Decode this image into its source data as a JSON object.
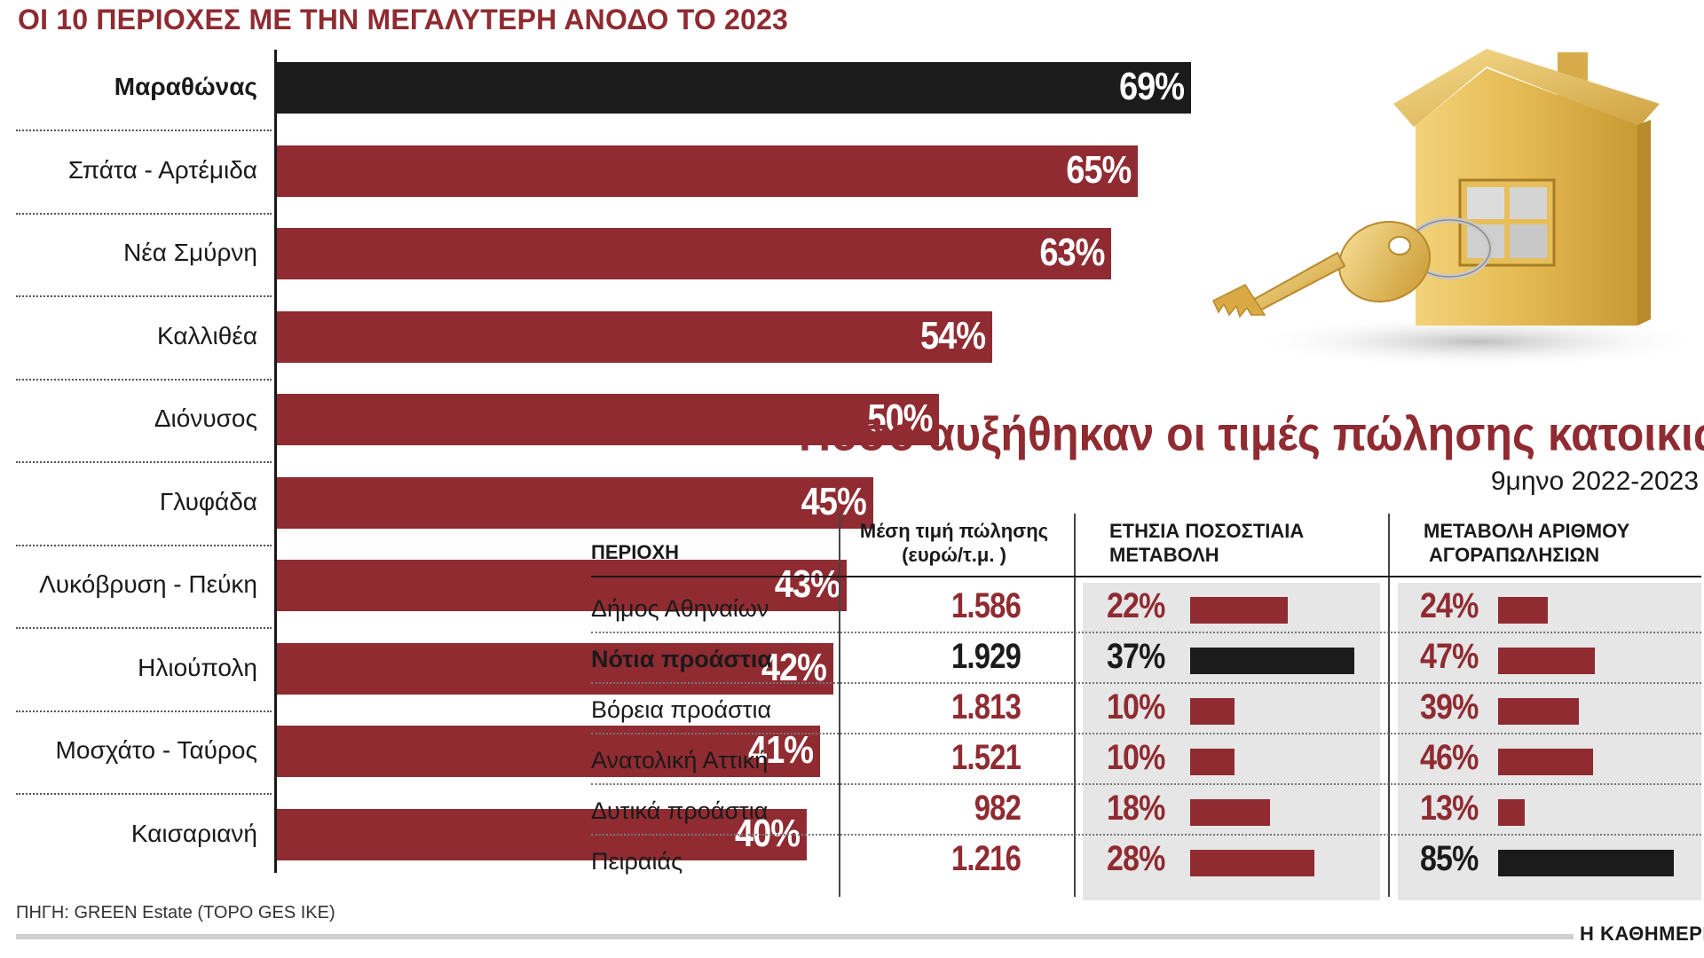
{
  "chart_data": [
    {
      "type": "bar",
      "orientation": "horizontal",
      "title": "ΟΙ 10 ΠΕΡΙΟΧΕΣ ΜΕ ΤΗΝ ΜΕΓΑΛΥΤΕΡΗ ΑΝΟΔΟ ΤΟ 2023",
      "unit": "%",
      "xlim": [
        0,
        69
      ],
      "highlight_color": "#1b1b1b",
      "bar_color": "#8f2b31",
      "categories": [
        "Μαραθώνας",
        "Σπάτα - Αρτέμιδα",
        "Νέα Σμύρνη",
        "Καλλιθέα",
        "Διόνυσος",
        "Γλυφάδα",
        "Λυκόβρυση - Πεύκη",
        "Ηλιούπολη",
        "Μοσχάτο - Ταύρος",
        "Καισαριανή"
      ],
      "values": [
        69,
        65,
        63,
        54,
        50,
        45,
        43,
        42,
        41,
        40
      ],
      "labels": [
        "69%",
        "65%",
        "63%",
        "54%",
        "50%",
        "45%",
        "43%",
        "42%",
        "41%",
        "40%"
      ],
      "highlighted": [
        true,
        false,
        false,
        false,
        false,
        false,
        false,
        false,
        false,
        false
      ]
    },
    {
      "type": "table",
      "title": "Πόσο αυξήθηκαν οι τιμές πώλησης κατοικιών",
      "subtitle": "9μηνο 2022-2023",
      "columns": [
        "ΠΕΡΙΟΧΗ",
        "Μέση τιμή πώλησης",
        "(ευρώ/τ.μ. )",
        "ΕΤΗΣΙΑ ΠΟΣΟΣΤΙΑΙΑ",
        "ΜΕΤΑΒΟΛΗ",
        "ΜΕΤΑΒΟΛΗ ΑΡΙΘΜΟΥ",
        "ΑΓΟΡΑΠΩΛΗΣΙΩΝ"
      ],
      "rows": [
        {
          "region": "Δήμος Αθηναίων",
          "price": "1.586",
          "annual": 22,
          "annual_label": "22%",
          "sales": 24,
          "sales_label": "24%",
          "hl": false,
          "annual_hl": false,
          "sales_hl": false
        },
        {
          "region": "Νότια προάστια",
          "price": "1.929",
          "annual": 37,
          "annual_label": "37%",
          "sales": 47,
          "sales_label": "47%",
          "hl": true,
          "annual_hl": true,
          "sales_hl": false
        },
        {
          "region": "Βόρεια προάστια",
          "price": "1.813",
          "annual": 10,
          "annual_label": "10%",
          "sales": 39,
          "sales_label": "39%",
          "hl": false,
          "annual_hl": false,
          "sales_hl": false
        },
        {
          "region": "Ανατολική Αττική",
          "price": "1.521",
          "annual": 10,
          "annual_label": "10%",
          "sales": 46,
          "sales_label": "46%",
          "hl": false,
          "annual_hl": false,
          "sales_hl": false
        },
        {
          "region": "Δυτικά προάστια",
          "price": "982",
          "annual": 18,
          "annual_label": "18%",
          "sales": 13,
          "sales_label": "13%",
          "hl": false,
          "annual_hl": false,
          "sales_hl": false
        },
        {
          "region": "Πειραιάς",
          "price": "1.216",
          "annual": 28,
          "annual_label": "28%",
          "sales": 85,
          "sales_label": "85%",
          "hl": false,
          "annual_hl": false,
          "sales_hl": true
        }
      ],
      "annual_max": 37,
      "sales_max": 85
    }
  ],
  "footer": {
    "source": "ΠΗΓΗ: GREEN Estate (TOPO GES IKE)",
    "brand": "Η ΚΑΘΗΜΕΡΙΝΗ"
  },
  "colors": {
    "accent": "#8f2b31",
    "highlight": "#1b1b1b",
    "shade": "#e6e6e6"
  }
}
